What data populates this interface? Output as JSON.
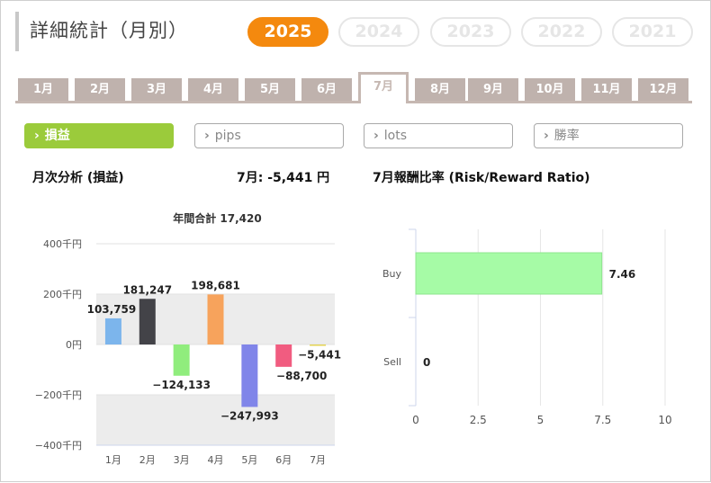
{
  "header": {
    "title": "詳細統計（月別）"
  },
  "years": [
    {
      "label": "2025",
      "active": true
    },
    {
      "label": "2024",
      "active": false
    },
    {
      "label": "2023",
      "active": false
    },
    {
      "label": "2022",
      "active": false
    },
    {
      "label": "2021",
      "active": false
    }
  ],
  "months": [
    "1月",
    "2月",
    "3月",
    "4月",
    "5月",
    "6月",
    "7月",
    "8月",
    "9月",
    "10月",
    "11月",
    "12月"
  ],
  "selected_month_index": 6,
  "metrics": [
    {
      "label": "損益",
      "active": true
    },
    {
      "label": "pips",
      "active": false
    },
    {
      "label": "lots",
      "active": false
    },
    {
      "label": "勝率",
      "active": false
    }
  ],
  "left_panel": {
    "title": "月次分析 (損益)",
    "summary": "7月:  -5,441 円"
  },
  "right_panel": {
    "title": "7月報酬比率 (Risk/Reward Ratio)"
  },
  "colors": {
    "accent": "#f4890e",
    "active_metric": "#9bcb3b",
    "tab": "#bfb2ad"
  },
  "chart_data": [
    {
      "type": "bar",
      "title": "年間合計 17,420",
      "categories": [
        "1月",
        "2月",
        "3月",
        "4月",
        "5月",
        "6月",
        "7月"
      ],
      "values": [
        103759,
        181247,
        -124133,
        198681,
        -247993,
        -88700,
        -5441
      ],
      "data_labels": [
        "103,759",
        "181,247",
        "−124,133",
        "198,681",
        "−247,993",
        "−88,700",
        "−5,441"
      ],
      "bar_colors": [
        "#7cb5ec",
        "#434348",
        "#90ed7d",
        "#f7a35c",
        "#8085e9",
        "#f15c80",
        "#e4d354"
      ],
      "y_ticks": [
        {
          "value": 400000,
          "label": "400千円"
        },
        {
          "value": 200000,
          "label": "200千円"
        },
        {
          "value": 0,
          "label": "0円"
        },
        {
          "value": -200000,
          "label": "−200千円"
        },
        {
          "value": -400000,
          "label": "−400千円"
        }
      ],
      "ylim": [
        -400000,
        400000
      ],
      "grid": "alternate bands"
    },
    {
      "type": "bar",
      "orientation": "horizontal",
      "categories": [
        "Buy",
        "Sell"
      ],
      "values": [
        7.46,
        0
      ],
      "data_labels": [
        "7.46",
        "0"
      ],
      "bar_color": "#a6fba6",
      "x_ticks": [
        0,
        2.5,
        5,
        7.5,
        10
      ],
      "x_tick_labels": [
        "0",
        "2.5",
        "5",
        "7.5",
        "10"
      ],
      "xlim": [
        0,
        10
      ],
      "grid": true
    }
  ]
}
